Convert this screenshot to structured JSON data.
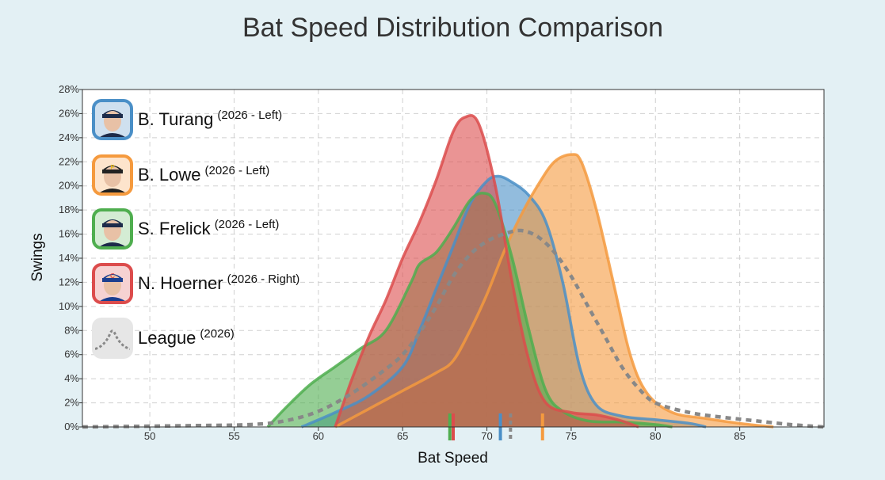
{
  "chart_data": {
    "type": "area",
    "title": "Bat Speed Distribution Comparison",
    "xlabel": "Bat Speed",
    "ylabel": "Swings",
    "xlim": [
      46,
      90
    ],
    "ylim": [
      0,
      28
    ],
    "x_ticks": [
      50,
      55,
      60,
      65,
      70,
      75,
      80,
      85
    ],
    "y_ticks": [
      0,
      2,
      4,
      6,
      8,
      10,
      12,
      14,
      16,
      18,
      20,
      22,
      24,
      26,
      28
    ],
    "y_tick_suffix": "%",
    "grid": true,
    "legend_position": "top-left",
    "series": [
      {
        "name": "B. Turang",
        "detail": "(2026 - Left)",
        "color": "#4a8fc7",
        "avg": 70.8,
        "icon": "player-headshot-icon",
        "points": [
          [
            59,
            0
          ],
          [
            61,
            1.2
          ],
          [
            63,
            2.6
          ],
          [
            65,
            5.0
          ],
          [
            66,
            8.0
          ],
          [
            67,
            11.5
          ],
          [
            68,
            15.0
          ],
          [
            69,
            18.5
          ],
          [
            70,
            20.4
          ],
          [
            70.7,
            20.8
          ],
          [
            71.5,
            20.3
          ],
          [
            72.5,
            19.2
          ],
          [
            73.5,
            17.0
          ],
          [
            74.5,
            12.0
          ],
          [
            75.5,
            5.0
          ],
          [
            76.5,
            1.8
          ],
          [
            78,
            0.9
          ],
          [
            80,
            0.6
          ],
          [
            82,
            0.3
          ],
          [
            83,
            0
          ]
        ]
      },
      {
        "name": "B. Lowe",
        "detail": "(2026 - Left)",
        "color": "#f59a3e",
        "avg": 73.3,
        "icon": "player-headshot-icon",
        "points": [
          [
            61,
            0
          ],
          [
            63,
            1.5
          ],
          [
            65,
            3.0
          ],
          [
            67,
            4.5
          ],
          [
            68,
            5.5
          ],
          [
            69,
            8.0
          ],
          [
            70,
            11.0
          ],
          [
            71,
            14.5
          ],
          [
            72,
            17.5
          ],
          [
            73,
            20.0
          ],
          [
            74,
            22.0
          ],
          [
            75,
            22.6
          ],
          [
            75.6,
            22.0
          ],
          [
            76.5,
            18.0
          ],
          [
            77.5,
            12.0
          ],
          [
            78.5,
            6.0
          ],
          [
            79.5,
            2.8
          ],
          [
            81,
            1.2
          ],
          [
            83,
            0.7
          ],
          [
            85,
            0.3
          ],
          [
            87,
            0
          ]
        ]
      },
      {
        "name": "S. Frelick",
        "detail": "(2026 - Left)",
        "color": "#4fae4f",
        "avg": 67.8,
        "icon": "player-headshot-icon",
        "points": [
          [
            57,
            0
          ],
          [
            58,
            1.5
          ],
          [
            59.5,
            3.5
          ],
          [
            61,
            5.0
          ],
          [
            62.5,
            6.5
          ],
          [
            64,
            8.0
          ],
          [
            65.5,
            12.0
          ],
          [
            66,
            13.5
          ],
          [
            67,
            14.5
          ],
          [
            68,
            16.5
          ],
          [
            69,
            18.8
          ],
          [
            69.8,
            19.4
          ],
          [
            70.5,
            18.5
          ],
          [
            71.5,
            14.0
          ],
          [
            72.5,
            8.0
          ],
          [
            73.5,
            3.0
          ],
          [
            74.5,
            1.3
          ],
          [
            76,
            0.5
          ],
          [
            78,
            0.4
          ],
          [
            80,
            0.2
          ],
          [
            81,
            0
          ]
        ]
      },
      {
        "name": "N. Hoerner",
        "detail": "(2026 - Right)",
        "color": "#dc4c4c",
        "avg": 68.0,
        "icon": "player-headshot-icon",
        "points": [
          [
            61,
            0
          ],
          [
            62,
            4.0
          ],
          [
            63,
            7.5
          ],
          [
            64,
            10.5
          ],
          [
            65,
            14.0
          ],
          [
            66,
            17.0
          ],
          [
            67,
            20.5
          ],
          [
            68,
            24.5
          ],
          [
            68.7,
            25.7
          ],
          [
            69.5,
            25.2
          ],
          [
            70.5,
            20.0
          ],
          [
            71.5,
            12.0
          ],
          [
            72.5,
            5.5
          ],
          [
            73.5,
            2.0
          ],
          [
            75,
            1.2
          ],
          [
            76.5,
            1.0
          ],
          [
            78,
            0.5
          ],
          [
            79,
            0
          ]
        ]
      }
    ],
    "league": {
      "name": "League",
      "detail": "(2026)",
      "color": "#888888",
      "avg": 71.4,
      "icon": "dotted-curve-icon",
      "points": [
        [
          46,
          0
        ],
        [
          52,
          0.1
        ],
        [
          56,
          0.2
        ],
        [
          58,
          0.5
        ],
        [
          60,
          1.3
        ],
        [
          62,
          2.8
        ],
        [
          64,
          4.8
        ],
        [
          65,
          6.0
        ],
        [
          66,
          7.8
        ],
        [
          67,
          10.0
        ],
        [
          68,
          12.5
        ],
        [
          69,
          14.3
        ],
        [
          70,
          15.4
        ],
        [
          71,
          16.0
        ],
        [
          72,
          16.3
        ],
        [
          73,
          15.8
        ],
        [
          74,
          14.5
        ],
        [
          75,
          12.5
        ],
        [
          76,
          10.0
        ],
        [
          77,
          7.5
        ],
        [
          78,
          5.0
        ],
        [
          79,
          3.2
        ],
        [
          80,
          2.0
        ],
        [
          82,
          1.2
        ],
        [
          84,
          0.8
        ],
        [
          86,
          0.5
        ],
        [
          88,
          0.2
        ],
        [
          90,
          0
        ]
      ]
    }
  }
}
